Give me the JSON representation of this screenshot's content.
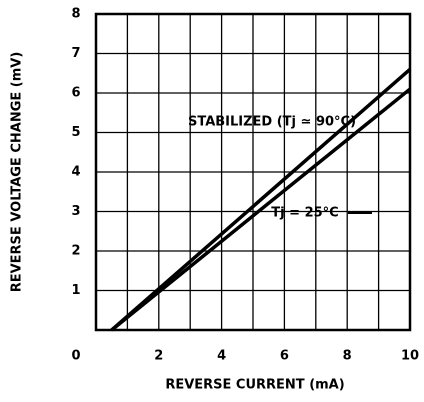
{
  "chart_data": {
    "type": "line",
    "xlabel": "REVERSE CURRENT (mA)",
    "ylabel": "REVERSE VOLTAGE CHANGE (mV)",
    "x": [
      0.5,
      10
    ],
    "series": [
      {
        "name": "STABILIZED (Tj ≃ 90°C)",
        "color": "#000000",
        "values": [
          0,
          6.6
        ]
      },
      {
        "name": "Tj = 25°C",
        "color": "#000000",
        "values": [
          0,
          6.1
        ]
      }
    ],
    "xlim": [
      0,
      10
    ],
    "ylim": [
      0,
      8
    ],
    "xticks": [
      0,
      2,
      4,
      6,
      8,
      10
    ],
    "yticks": [
      1,
      2,
      3,
      4,
      5,
      6,
      7,
      8
    ],
    "xgrid": [
      0,
      1,
      2,
      3,
      4,
      5,
      6,
      7,
      8,
      9,
      10
    ],
    "ygrid": [
      0,
      1,
      2,
      3,
      4,
      5,
      6,
      7,
      8
    ],
    "grid": true
  }
}
